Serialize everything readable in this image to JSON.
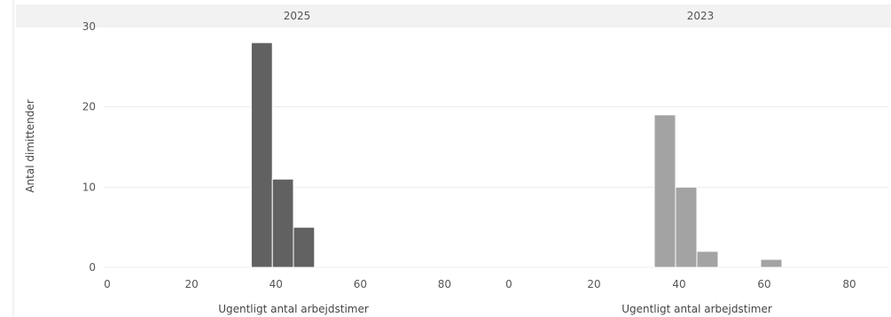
{
  "chart_data": {
    "type": "bar",
    "ylabel": "Antal dimittender",
    "ylim": [
      0,
      30
    ],
    "yticks": [
      0,
      10,
      20,
      30
    ],
    "xlim": [
      0,
      90
    ],
    "xticks": [
      0,
      20,
      40,
      60,
      80
    ],
    "grid": true,
    "panels": [
      {
        "title": "2025",
        "xlabel": "Ugentligt antal arbejdstimer",
        "color": "#616161",
        "bins": [
          {
            "x0": 35,
            "x1": 40,
            "value": 28
          },
          {
            "x0": 40,
            "x1": 45,
            "value": 11
          },
          {
            "x0": 45,
            "x1": 50,
            "value": 5
          }
        ]
      },
      {
        "title": "2023",
        "xlabel": "Ugentligt antal arbejdstimer",
        "color": "#a3a3a3",
        "bins": [
          {
            "x0": 35,
            "x1": 40,
            "value": 19
          },
          {
            "x0": 40,
            "x1": 45,
            "value": 10
          },
          {
            "x0": 45,
            "x1": 50,
            "value": 2
          },
          {
            "x0": 60,
            "x1": 65,
            "value": 1
          }
        ]
      }
    ]
  }
}
